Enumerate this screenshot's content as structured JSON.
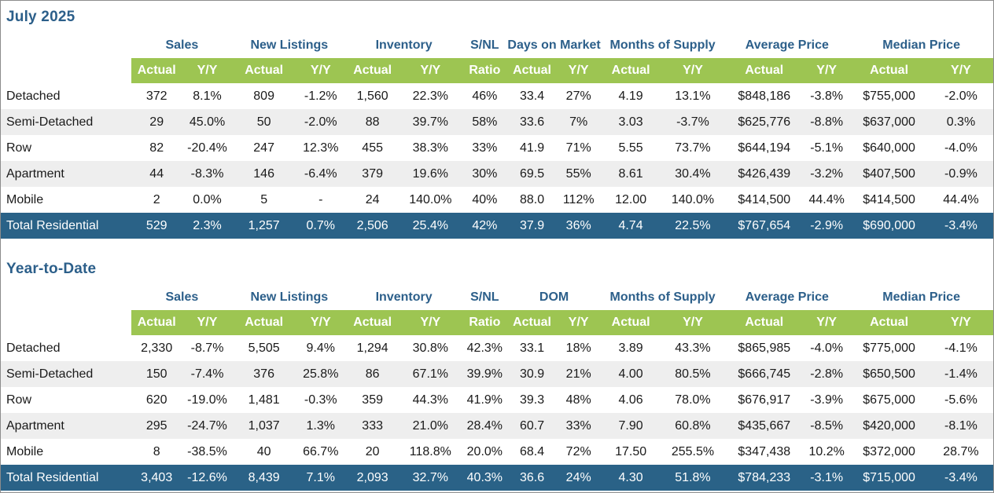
{
  "monthly": {
    "title": "July 2025",
    "groups": [
      "Sales",
      "New Listings",
      "Inventory",
      "S/NL",
      "Days on Market",
      "Months of Supply",
      "Average Price",
      "Median Price"
    ],
    "sub": [
      "Actual",
      "Y/Y",
      "Actual",
      "Y/Y",
      "Actual",
      "Y/Y",
      "Ratio",
      "Actual",
      "Y/Y",
      "Actual",
      "Y/Y",
      "Actual",
      "Y/Y",
      "Actual",
      "Y/Y"
    ],
    "rows": [
      [
        "Detached",
        "372",
        "8.1%",
        "809",
        "-1.2%",
        "1,560",
        "22.3%",
        "46%",
        "33.4",
        "27%",
        "4.19",
        "13.1%",
        "$848,186",
        "-3.8%",
        "$755,000",
        "-2.0%"
      ],
      [
        "Semi-Detached",
        "29",
        "45.0%",
        "50",
        "-2.0%",
        "88",
        "39.7%",
        "58%",
        "33.6",
        "7%",
        "3.03",
        "-3.7%",
        "$625,776",
        "-8.8%",
        "$637,000",
        "0.3%"
      ],
      [
        "Row",
        "82",
        "-20.4%",
        "247",
        "12.3%",
        "455",
        "38.3%",
        "33%",
        "41.9",
        "71%",
        "5.55",
        "73.7%",
        "$644,194",
        "-5.1%",
        "$640,000",
        "-4.0%"
      ],
      [
        "Apartment",
        "44",
        "-8.3%",
        "146",
        "-6.4%",
        "379",
        "19.6%",
        "30%",
        "69.5",
        "55%",
        "8.61",
        "30.4%",
        "$426,439",
        "-3.2%",
        "$407,500",
        "-0.9%"
      ],
      [
        "Mobile",
        "2",
        "0.0%",
        "5",
        "-",
        "24",
        "140.0%",
        "40%",
        "88.0",
        "112%",
        "12.00",
        "140.0%",
        "$414,500",
        "44.4%",
        "$414,500",
        "44.4%"
      ]
    ],
    "total": [
      "Total Residential",
      "529",
      "2.3%",
      "1,257",
      "0.7%",
      "2,506",
      "25.4%",
      "42%",
      "37.9",
      "36%",
      "4.74",
      "22.5%",
      "$767,654",
      "-2.9%",
      "$690,000",
      "-3.4%"
    ]
  },
  "ytd": {
    "title": "Year-to-Date",
    "groups": [
      "Sales",
      "New Listings",
      "Inventory",
      "S/NL",
      "DOM",
      "Months of Supply",
      "Average Price",
      "Median Price"
    ],
    "sub": [
      "Actual",
      "Y/Y",
      "Actual",
      "Y/Y",
      "Actual",
      "Y/Y",
      "Ratio",
      "Actual",
      "Y/Y",
      "Actual",
      "Y/Y",
      "Actual",
      "Y/Y",
      "Actual",
      "Y/Y"
    ],
    "rows": [
      [
        "Detached",
        "2,330",
        "-8.7%",
        "5,505",
        "9.4%",
        "1,294",
        "30.8%",
        "42.3%",
        "33.1",
        "18%",
        "3.89",
        "43.3%",
        "$865,985",
        "-4.0%",
        "$775,000",
        "-4.1%"
      ],
      [
        "Semi-Detached",
        "150",
        "-7.4%",
        "376",
        "25.8%",
        "86",
        "67.1%",
        "39.9%",
        "30.9",
        "21%",
        "4.00",
        "80.5%",
        "$666,745",
        "-2.8%",
        "$650,500",
        "-1.4%"
      ],
      [
        "Row",
        "620",
        "-19.0%",
        "1,481",
        "-0.3%",
        "359",
        "44.3%",
        "41.9%",
        "39.3",
        "48%",
        "4.06",
        "78.0%",
        "$676,917",
        "-3.9%",
        "$675,000",
        "-5.6%"
      ],
      [
        "Apartment",
        "295",
        "-24.7%",
        "1,037",
        "1.3%",
        "333",
        "21.0%",
        "28.4%",
        "60.7",
        "33%",
        "7.90",
        "60.8%",
        "$435,667",
        "-8.5%",
        "$420,000",
        "-8.1%"
      ],
      [
        "Mobile",
        "8",
        "-38.5%",
        "40",
        "66.7%",
        "20",
        "118.8%",
        "20.0%",
        "68.4",
        "72%",
        "17.50",
        "255.5%",
        "$347,438",
        "10.2%",
        "$372,000",
        "28.7%"
      ]
    ],
    "total": [
      "Total Residential",
      "3,403",
      "-12.6%",
      "8,439",
      "7.1%",
      "2,093",
      "32.7%",
      "40.3%",
      "36.6",
      "24%",
      "4.30",
      "51.8%",
      "$784,233",
      "-3.1%",
      "$715,000",
      "-3.4%"
    ]
  }
}
